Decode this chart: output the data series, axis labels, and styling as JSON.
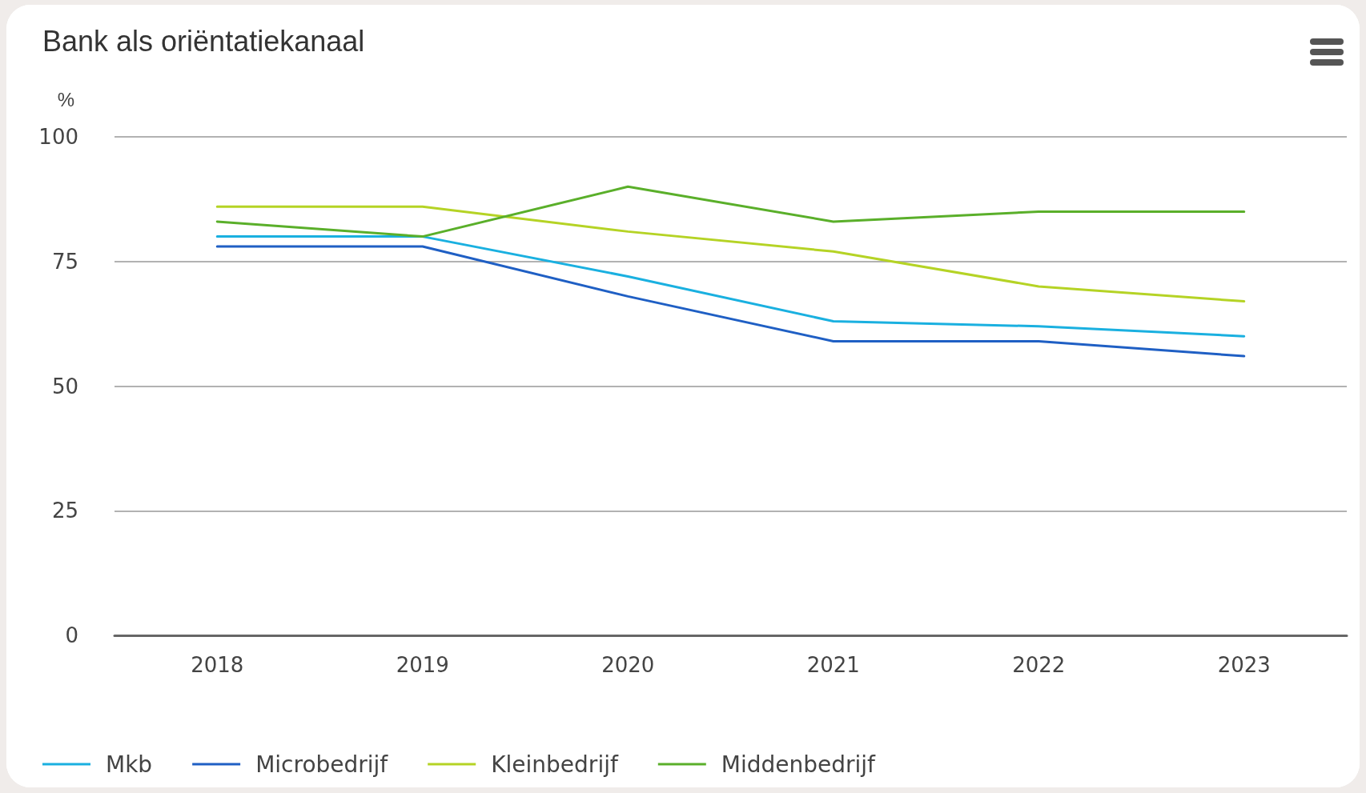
{
  "chart_data": {
    "type": "line",
    "title": "Bank als oriëntatiekanaal",
    "ylabel": "%",
    "categories": [
      "2018",
      "2019",
      "2020",
      "2021",
      "2022",
      "2023"
    ],
    "series": [
      {
        "name": "Mkb",
        "color": "#1ab0e0",
        "values": [
          80,
          80,
          72,
          63,
          62,
          60
        ]
      },
      {
        "name": "Microbedrijf",
        "color": "#1f5fc4",
        "values": [
          78,
          78,
          68,
          59,
          59,
          56
        ]
      },
      {
        "name": "Kleinbedrijf",
        "color": "#b5d325",
        "values": [
          86,
          86,
          81,
          77,
          70,
          67
        ]
      },
      {
        "name": "Middenbedrijf",
        "color": "#5aaf2a",
        "values": [
          83,
          80,
          90,
          83,
          85,
          85
        ]
      }
    ],
    "ylim": [
      0,
      100
    ],
    "yticks": [
      0,
      25,
      50,
      75,
      100
    ],
    "grid": "y",
    "legend": "bottom left",
    "marker": "none",
    "line_style": "solid"
  }
}
